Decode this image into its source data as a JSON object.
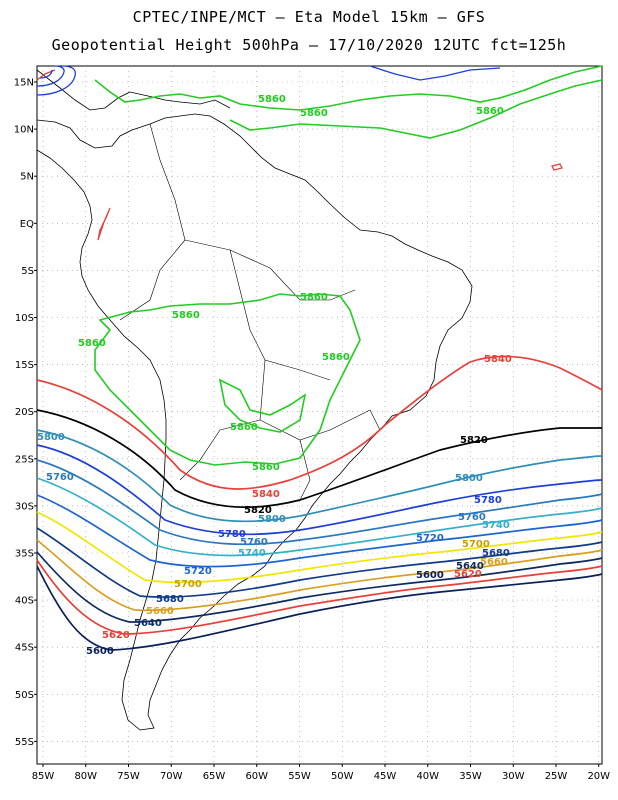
{
  "header": {
    "line1": "CPTEC/INPE/MCT –  Eta Model 15km – GFS",
    "line2": "Geopotential Height 500hPa – 17/10/2020 12UTC fct=125h"
  },
  "map": {
    "lat_ticks": [
      "15N",
      "10N",
      "5N",
      "EQ",
      "5S",
      "10S",
      "15S",
      "20S",
      "25S",
      "30S",
      "35S",
      "40S",
      "45S",
      "50S",
      "55S"
    ],
    "lon_ticks": [
      "85W",
      "80W",
      "75W",
      "70W",
      "65W",
      "60W",
      "55W",
      "50W",
      "45W",
      "40W",
      "35W",
      "30W",
      "25W",
      "20W"
    ],
    "grid": true,
    "colors": {
      "c5860": "#22cc22",
      "c5840": "#e8403a",
      "c5820": "#000000",
      "c5800": "#2f8fb8",
      "c5780": "#1d3fd8",
      "c5760": "#2a78c0",
      "c5740": "#33b0cc",
      "c5720": "#1d66d0",
      "c5700": "#f2e600",
      "c5680": "#123a8a",
      "c5660": "#d9a020",
      "c5640": "#0d2a60",
      "c5620": "#e8403a",
      "c5600": "#0a2058"
    }
  },
  "contour_labels": {
    "l5860": "5860",
    "l5840": "5840",
    "l5820": "5820",
    "l5800": "5800",
    "l5780": "5780",
    "l5760": "5760",
    "l5740": "5740",
    "l5720": "5720",
    "l5700": "5700",
    "l5680": "5680",
    "l5660": "5660",
    "l5640": "5640",
    "l5620": "5620",
    "l5600": "5600"
  }
}
